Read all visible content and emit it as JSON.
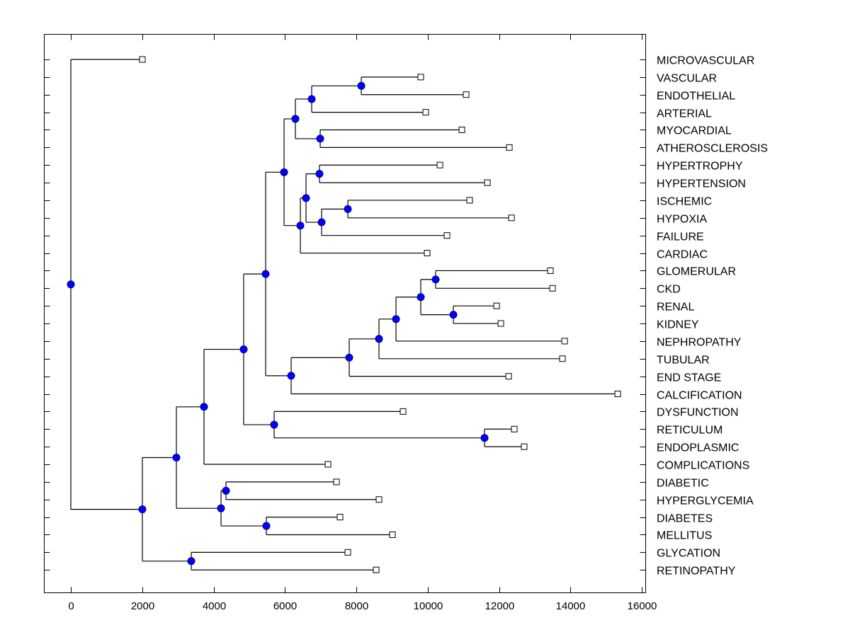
{
  "chart_data": {
    "type": "dendrogram",
    "title": "",
    "xlabel": "",
    "ylabel": "",
    "xlim": [
      -750,
      16100
    ],
    "xticks": [
      0,
      2000,
      4000,
      6000,
      8000,
      10000,
      12000,
      14000,
      16000
    ],
    "xtick_labels": [
      "0",
      "2000",
      "4000",
      "6000",
      "8000",
      "10000",
      "12000",
      "14000",
      "16000"
    ],
    "grid": false,
    "node_color": "#0000ff",
    "leaf_marker": "open-square",
    "leaves": [
      {
        "label": "MICROVASCULAR",
        "value": 2005
      },
      {
        "label": "VASCULAR",
        "value": 9807
      },
      {
        "label": "ENDOTHELIAL",
        "value": 11078
      },
      {
        "label": "ARTERIAL",
        "value": 9946
      },
      {
        "label": "MYOCARDIAL",
        "value": 10959
      },
      {
        "label": "ATHEROSCLEROSIS",
        "value": 12289
      },
      {
        "label": "HYPERTROPHY",
        "value": 10344
      },
      {
        "label": "HYPERTENSION",
        "value": 11674
      },
      {
        "label": "ISCHEMIC",
        "value": 11177
      },
      {
        "label": "HYPOXIA",
        "value": 12349
      },
      {
        "label": "FAILURE",
        "value": 10542
      },
      {
        "label": "CARDIAC",
        "value": 9986
      },
      {
        "label": "GLOMERULAR",
        "value": 13440
      },
      {
        "label": "CKD",
        "value": 13500
      },
      {
        "label": "RENAL",
        "value": 11932
      },
      {
        "label": "KIDNEY",
        "value": 12051
      },
      {
        "label": "NEPHROPATHY",
        "value": 13838
      },
      {
        "label": "TUBULAR",
        "value": 13778
      },
      {
        "label": "END STAGE",
        "value": 12269
      },
      {
        "label": "CALCIFICATION",
        "value": 15327
      },
      {
        "label": "DYSFUNCTION",
        "value": 9311
      },
      {
        "label": "RETICULUM",
        "value": 12428
      },
      {
        "label": "ENDOPLASMIC",
        "value": 12706
      },
      {
        "label": "COMPLICATIONS",
        "value": 7207
      },
      {
        "label": "DIABETIC",
        "value": 7445
      },
      {
        "label": "HYPERGLYCEMIA",
        "value": 8636
      },
      {
        "label": "DIABETES",
        "value": 7544
      },
      {
        "label": "MELLITUS",
        "value": 9013
      },
      {
        "label": "GLYCATION",
        "value": 7763
      },
      {
        "label": "RETINOPATHY",
        "value": 8557
      }
    ],
    "tree": {
      "value": 0,
      "children": [
        {
          "leaf": 0
        },
        {
          "value": 2005,
          "children": [
            {
              "value": 2958,
              "children": [
                {
                  "value": 3732,
                  "children": [
                    {
                      "value": 4844,
                      "children": [
                        {
                          "value": 5460,
                          "children": [
                            {
                              "value": 5976,
                              "children": [
                                {
                                  "value": 6293,
                                  "children": [
                                    {
                                      "value": 6750,
                                      "children": [
                                        {
                                          "value": 8140,
                                          "children": [
                                            {
                                              "leaf": 1
                                            },
                                            {
                                              "leaf": 2
                                            }
                                          ]
                                        },
                                        {
                                          "leaf": 3
                                        }
                                      ]
                                    },
                                    {
                                      "value": 6988,
                                      "children": [
                                        {
                                          "leaf": 4
                                        },
                                        {
                                          "leaf": 5
                                        }
                                      ]
                                    }
                                  ]
                                },
                                {
                                  "value": 6432,
                                  "children": [
                                    {
                                      "value": 6591,
                                      "children": [
                                        {
                                          "value": 6968,
                                          "children": [
                                            {
                                              "leaf": 6
                                            },
                                            {
                                              "leaf": 7
                                            }
                                          ]
                                        },
                                        {
                                          "value": 7028,
                                          "children": [
                                            {
                                              "value": 7763,
                                              "children": [
                                                {
                                                  "leaf": 8
                                                },
                                                {
                                                  "leaf": 9
                                                }
                                              ]
                                            },
                                            {
                                              "leaf": 10
                                            }
                                          ]
                                        }
                                      ]
                                    },
                                    {
                                      "leaf": 11
                                    }
                                  ]
                                }
                              ]
                            },
                            {
                              "value": 6174,
                              "children": [
                                {
                                  "value": 7802,
                                  "children": [
                                    {
                                      "value": 8636,
                                      "children": [
                                        {
                                          "value": 9113,
                                          "children": [
                                            {
                                              "value": 9807,
                                              "children": [
                                                {
                                                  "value": 10224,
                                                  "children": [
                                                    {
                                                      "leaf": 12
                                                    },
                                                    {
                                                      "leaf": 13
                                                    }
                                                  ]
                                                },
                                                {
                                                  "value": 10721,
                                                  "children": [
                                                    {
                                                      "leaf": 14
                                                    },
                                                    {
                                                      "leaf": 15
                                                    }
                                                  ]
                                                }
                                              ]
                                            },
                                            {
                                              "leaf": 16
                                            }
                                          ]
                                        },
                                        {
                                          "leaf": 17
                                        }
                                      ]
                                    },
                                    {
                                      "leaf": 18
                                    }
                                  ]
                                },
                                {
                                  "leaf": 19
                                }
                              ]
                            }
                          ]
                        },
                        {
                          "value": 5698,
                          "children": [
                            {
                              "leaf": 20
                            },
                            {
                              "value": 11594,
                              "children": [
                                {
                                  "leaf": 21
                                },
                                {
                                  "leaf": 22
                                }
                              ]
                            }
                          ]
                        }
                      ]
                    },
                    {
                      "leaf": 23
                    }
                  ]
                },
                {
                  "value": 4209,
                  "children": [
                    {
                      "value": 4348,
                      "children": [
                        {
                          "leaf": 24
                        },
                        {
                          "leaf": 25
                        }
                      ]
                    },
                    {
                      "value": 5479,
                      "children": [
                        {
                          "leaf": 26
                        },
                        {
                          "leaf": 27
                        }
                      ]
                    }
                  ]
                }
              ]
            },
            {
              "value": 3375,
              "children": [
                {
                  "leaf": 28
                },
                {
                  "leaf": 29
                }
              ]
            }
          ]
        }
      ]
    }
  }
}
